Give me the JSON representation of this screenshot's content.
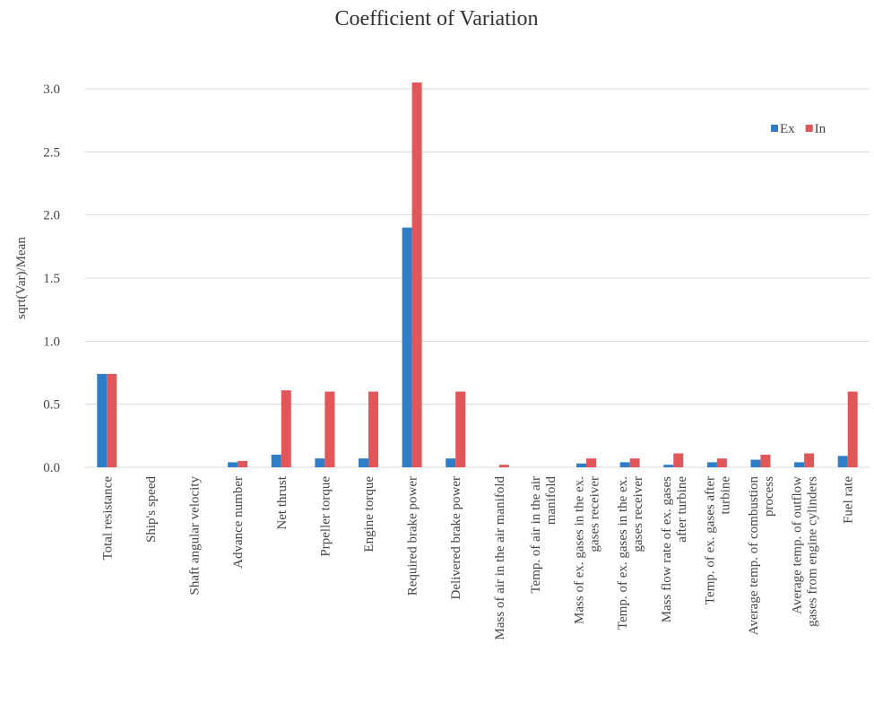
{
  "chart_data": {
    "type": "bar",
    "title": "Coefficient of Variation",
    "y_label": "sqrt(Var)/Mean",
    "categories": [
      "Total resistance",
      "Ship's speed",
      "Shaft angular velocity",
      "Advance number",
      "Net thrust",
      "Prpeller torque",
      "Engine torque",
      "Required brake power",
      "Delivered brake power",
      "Mass of air in the air manifold",
      "Temp. of air in the air\nmanifold",
      "Mass of ex. gases in the ex.\ngases receiver",
      "Temp. of ex. gases in the ex.\ngases receiver",
      "Mass flow rate of ex. gases\nafter turbine",
      "Temp. of ex. gases after\nturbine",
      "Average temp. of combustion\nprocess",
      "Average temp. of outflow\ngases from engine cylinders",
      "Fuel rate"
    ],
    "series": [
      {
        "name": "Ex",
        "color": "#2e7dc6",
        "values": [
          0.74,
          0,
          0,
          0.04,
          0.1,
          0.07,
          0.07,
          1.9,
          0.07,
          0,
          0,
          0.03,
          0.04,
          0.02,
          0.04,
          0.06,
          0.04,
          0.09
        ]
      },
      {
        "name": "In",
        "color": "#e15759",
        "values": [
          0.74,
          0,
          0,
          0.05,
          0.61,
          0.6,
          0.6,
          3.05,
          0.6,
          0.02,
          0,
          0.07,
          0.07,
          0.11,
          0.07,
          0.1,
          0.11,
          0.6
        ]
      }
    ],
    "ylim": [
      0,
      3.0
    ],
    "yticks": [
      {
        "value": 0,
        "label": "0.0"
      },
      0.5,
      {
        "value": 1,
        "label": "1.0"
      },
      1.5,
      {
        "value": 2,
        "label": "2.0"
      },
      2.5,
      {
        "value": 3,
        "label": "3.0"
      }
    ],
    "grid": true,
    "legend": "upper right"
  }
}
